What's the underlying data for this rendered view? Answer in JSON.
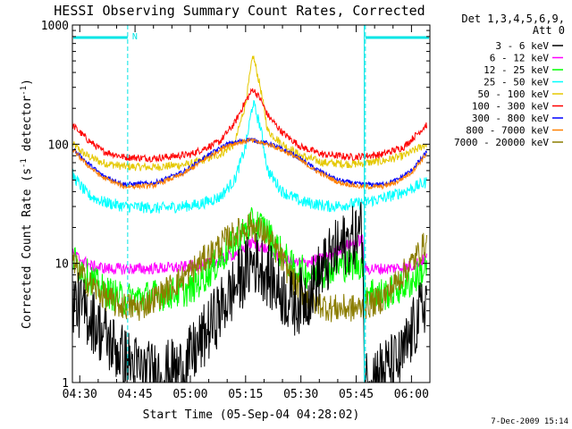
{
  "chart_data": {
    "type": "line",
    "title": "HESSI Observing Summary Count Rates, Corrected",
    "xlabel": "Start Time (05-Sep-04 04:28:02)",
    "ylabel_main": "Corrected Count Rate (s",
    "ylabel_sup1": "-1",
    "ylabel_mid": " detector",
    "ylabel_sup2": "-1",
    "ylabel_end": ")",
    "y_scale": "log",
    "ylim": [
      1,
      1000
    ],
    "xlim_minutes": [
      0,
      97
    ],
    "x_tick_labels": [
      "04:30",
      "04:45",
      "05:00",
      "05:15",
      "05:30",
      "05:45",
      "06:00"
    ],
    "x_tick_minutes": [
      2,
      17,
      32,
      47,
      62,
      77,
      92
    ],
    "y_tick_labels": [
      "1",
      "10",
      "100",
      "1000"
    ],
    "y_tick_values": [
      1,
      10,
      100,
      1000
    ],
    "legend_header": [
      "Det 1,3,4,5,6,9,",
      "Att 0"
    ],
    "legend_position": "right",
    "footer_date": "7-Dec-2009 15:14",
    "night_marker_label": "N",
    "night_bar_color": "#00e5e5",
    "night_intervals_minutes": [
      [
        0,
        15
      ],
      [
        79.5,
        97
      ]
    ],
    "series": [
      {
        "name": "3 - 6 keV",
        "color": "#000000",
        "points": [
          [
            0,
            5
          ],
          [
            5,
            3.5
          ],
          [
            10,
            2.2
          ],
          [
            15,
            1.5
          ],
          [
            20,
            1.2
          ],
          [
            25,
            1.2
          ],
          [
            30,
            1.3
          ],
          [
            35,
            2.2
          ],
          [
            40,
            4
          ],
          [
            45,
            7
          ],
          [
            49,
            10.5
          ],
          [
            52,
            9
          ],
          [
            56,
            6
          ],
          [
            60,
            4.5
          ],
          [
            64,
            5.5
          ],
          [
            68,
            9
          ],
          [
            72,
            13
          ],
          [
            76,
            16
          ],
          [
            78.8,
            19
          ],
          [
            79.2,
            1
          ],
          [
            80,
            1.1
          ],
          [
            85,
            1.3
          ],
          [
            89,
            1.5
          ],
          [
            93,
            3
          ],
          [
            96,
            5
          ]
        ]
      },
      {
        "name": "6 - 12 keV",
        "color": "#ff00ff",
        "points": [
          [
            0,
            12
          ],
          [
            5,
            9.5
          ],
          [
            10,
            9
          ],
          [
            20,
            9
          ],
          [
            30,
            9.3
          ],
          [
            38,
            10
          ],
          [
            44,
            12
          ],
          [
            49,
            15
          ],
          [
            53,
            13
          ],
          [
            58,
            10.5
          ],
          [
            62,
            10
          ],
          [
            68,
            11
          ],
          [
            74,
            14
          ],
          [
            78.8,
            16
          ],
          [
            79.2,
            9
          ],
          [
            85,
            9
          ],
          [
            92,
            9.5
          ],
          [
            96,
            11
          ]
        ]
      },
      {
        "name": "12 - 25 keV",
        "color": "#00ff00",
        "points": [
          [
            0,
            11
          ],
          [
            4,
            8
          ],
          [
            8,
            6
          ],
          [
            14,
            5
          ],
          [
            25,
            5.5
          ],
          [
            32,
            6
          ],
          [
            38,
            9
          ],
          [
            44,
            15
          ],
          [
            49,
            22
          ],
          [
            52,
            20
          ],
          [
            56,
            13
          ],
          [
            60,
            9
          ],
          [
            66,
            8
          ],
          [
            72,
            9.5
          ],
          [
            78.8,
            10
          ],
          [
            79.2,
            6
          ],
          [
            85,
            5.5
          ],
          [
            92,
            7
          ],
          [
            96,
            9
          ]
        ]
      },
      {
        "name": "25 - 50 keV",
        "color": "#00ffff",
        "points": [
          [
            0,
            55
          ],
          [
            4,
            38
          ],
          [
            8,
            33
          ],
          [
            14,
            30
          ],
          [
            24,
            29
          ],
          [
            34,
            31
          ],
          [
            40,
            36
          ],
          [
            44,
            50
          ],
          [
            47,
            95
          ],
          [
            49,
            225
          ],
          [
            51,
            140
          ],
          [
            53,
            60
          ],
          [
            57,
            40
          ],
          [
            62,
            33
          ],
          [
            70,
            30
          ],
          [
            78,
            32
          ],
          [
            84,
            35
          ],
          [
            90,
            40
          ],
          [
            96,
            48
          ]
        ]
      },
      {
        "name": "50 - 100 keV",
        "color": "#e5c800",
        "points": [
          [
            0,
            100
          ],
          [
            4,
            80
          ],
          [
            8,
            70
          ],
          [
            14,
            65
          ],
          [
            22,
            64
          ],
          [
            32,
            68
          ],
          [
            40,
            82
          ],
          [
            44,
            100
          ],
          [
            47,
            220
          ],
          [
            49,
            560
          ],
          [
            51,
            300
          ],
          [
            53,
            130
          ],
          [
            57,
            100
          ],
          [
            62,
            80
          ],
          [
            68,
            70
          ],
          [
            76,
            68
          ],
          [
            84,
            72
          ],
          [
            90,
            80
          ],
          [
            96,
            100
          ]
        ]
      },
      {
        "name": "100 - 300 keV",
        "color": "#ff0000",
        "points": [
          [
            0,
            145
          ],
          [
            4,
            110
          ],
          [
            8,
            88
          ],
          [
            14,
            78
          ],
          [
            22,
            76
          ],
          [
            32,
            82
          ],
          [
            40,
            105
          ],
          [
            44,
            150
          ],
          [
            47,
            230
          ],
          [
            49,
            290
          ],
          [
            51,
            240
          ],
          [
            53,
            175
          ],
          [
            57,
            125
          ],
          [
            62,
            95
          ],
          [
            68,
            82
          ],
          [
            76,
            78
          ],
          [
            84,
            82
          ],
          [
            90,
            95
          ],
          [
            96,
            145
          ]
        ]
      },
      {
        "name": "300 - 800 keV",
        "color": "#0000ff",
        "points": [
          [
            0,
            92
          ],
          [
            4,
            70
          ],
          [
            8,
            55
          ],
          [
            14,
            46
          ],
          [
            22,
            47
          ],
          [
            30,
            58
          ],
          [
            36,
            78
          ],
          [
            42,
            100
          ],
          [
            48,
            110
          ],
          [
            54,
            100
          ],
          [
            60,
            82
          ],
          [
            66,
            62
          ],
          [
            72,
            50
          ],
          [
            78,
            46
          ],
          [
            84,
            46
          ],
          [
            88,
            50
          ],
          [
            92,
            60
          ],
          [
            96,
            85
          ]
        ]
      },
      {
        "name": "800 - 7000 keV",
        "color": "#ff8000",
        "points": [
          [
            0,
            90
          ],
          [
            4,
            67
          ],
          [
            8,
            53
          ],
          [
            14,
            44
          ],
          [
            22,
            45
          ],
          [
            30,
            56
          ],
          [
            36,
            75
          ],
          [
            42,
            98
          ],
          [
            48,
            108
          ],
          [
            54,
            98
          ],
          [
            60,
            80
          ],
          [
            66,
            60
          ],
          [
            72,
            48
          ],
          [
            78,
            44
          ],
          [
            84,
            44
          ],
          [
            88,
            48
          ],
          [
            92,
            58
          ],
          [
            96,
            82
          ]
        ]
      },
      {
        "name": "7000 - 20000 keV",
        "color": "#8b7d00",
        "points": [
          [
            0,
            10
          ],
          [
            4,
            7
          ],
          [
            8,
            5.5
          ],
          [
            12,
            4.5
          ],
          [
            18,
            4.2
          ],
          [
            24,
            5.5
          ],
          [
            30,
            7.5
          ],
          [
            36,
            11
          ],
          [
            42,
            16
          ],
          [
            48,
            21
          ],
          [
            52,
            18
          ],
          [
            56,
            12
          ],
          [
            60,
            7
          ],
          [
            64,
            5
          ],
          [
            70,
            4.2
          ],
          [
            78,
            4.2
          ],
          [
            84,
            5
          ],
          [
            88,
            7
          ],
          [
            92,
            10
          ],
          [
            96,
            15
          ]
        ]
      }
    ]
  }
}
